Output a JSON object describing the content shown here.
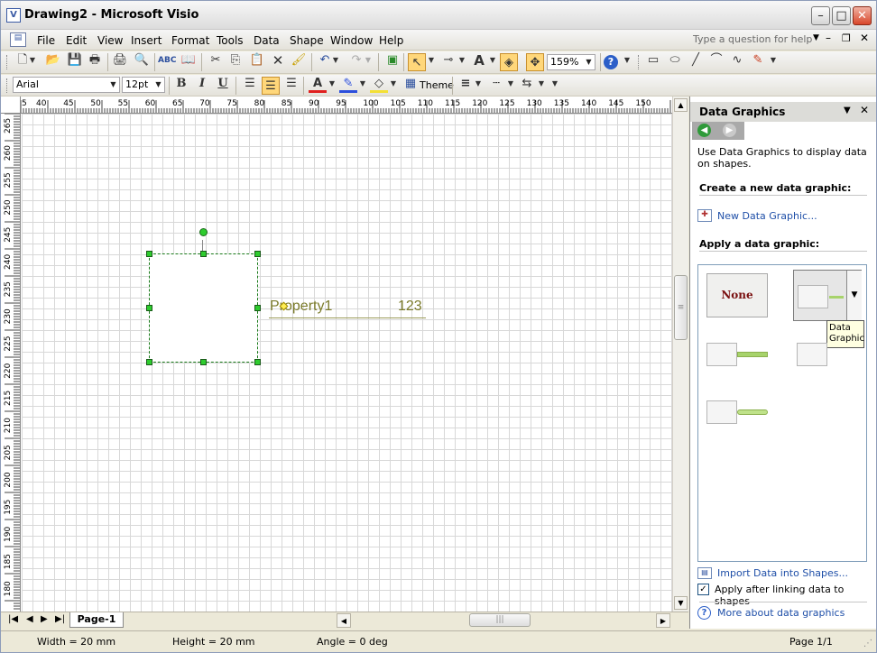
{
  "window": {
    "title": "Drawing2 - Microsoft Visio"
  },
  "menu": {
    "items": [
      "File",
      "Edit",
      "View",
      "Insert",
      "Format",
      "Tools",
      "Data",
      "Shape",
      "Window",
      "Help"
    ],
    "help_placeholder": "Type a question for help"
  },
  "toolbar": {
    "zoom": "159%",
    "font": "Arial",
    "size": "12pt",
    "theme_label": "Theme"
  },
  "ruler": {
    "h_ticks": [
      "5",
      "40",
      "45",
      "50",
      "55",
      "60",
      "65",
      "70",
      "75",
      "80",
      "85",
      "90",
      "95",
      "100",
      "105",
      "110",
      "115",
      "120",
      "125",
      "130",
      "135",
      "140",
      "145",
      "150"
    ],
    "v_ticks": [
      "265",
      "260",
      "255",
      "250",
      "245",
      "240",
      "235",
      "230",
      "225",
      "220",
      "215",
      "210",
      "205",
      "200",
      "195",
      "190",
      "185",
      "180"
    ]
  },
  "drawing": {
    "property_label": "Property1",
    "property_value": "123"
  },
  "tabs": {
    "page_tab": "Page-1"
  },
  "status": {
    "width": "Width = 20 mm",
    "height": "Height = 20 mm",
    "angle": "Angle = 0 deg",
    "page": "Page 1/1"
  },
  "pane": {
    "title": "Data Graphics",
    "description": "Use Data Graphics to display data on shapes.",
    "create_heading": "Create a new data graphic:",
    "new_link": "New Data Graphic...",
    "apply_heading": "Apply a data graphic:",
    "none_label": "None",
    "tooltip": "Data Graphic",
    "import_link": "Import Data into Shapes...",
    "apply_after": "Apply after linking data to shapes",
    "apply_after_checked": true,
    "more_link": "More about data graphics"
  }
}
